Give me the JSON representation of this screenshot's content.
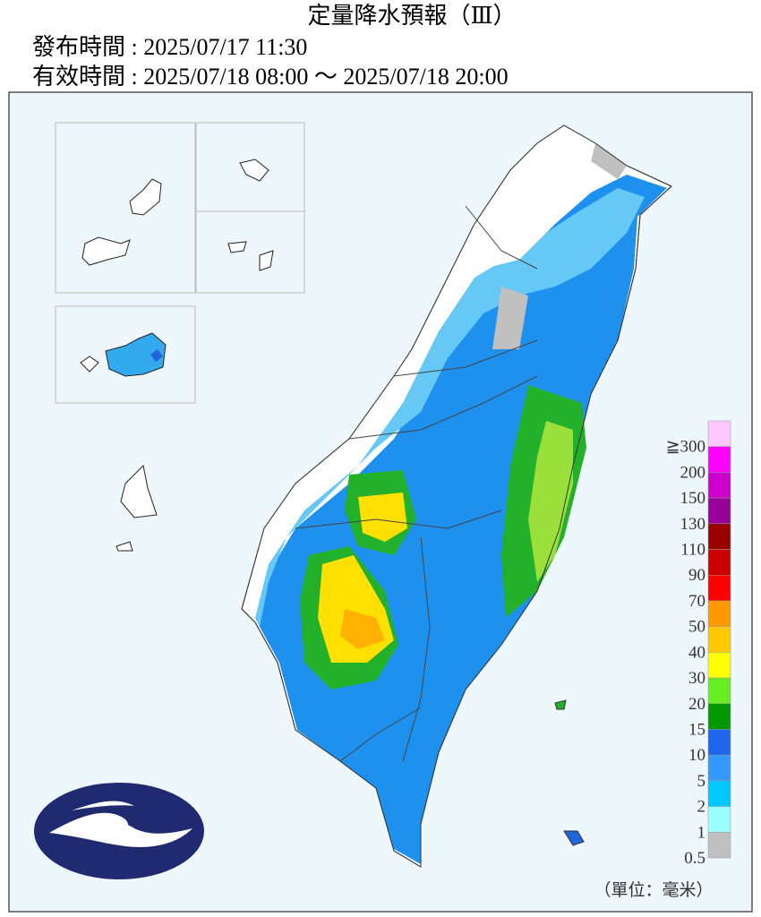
{
  "header": {
    "title": "定量降水預報（Ⅲ）",
    "issued": "發布時間 : 2025/07/17 11:30",
    "valid": "有效時間 : 2025/07/18 08:00 ～ 2025/07/18 20:00"
  },
  "legend": {
    "labels": [
      "≧300",
      "200",
      "150",
      "130",
      "110",
      "90",
      "70",
      "50",
      "40",
      "30",
      "20",
      "15",
      "10",
      "5",
      "2",
      "1",
      "0.5"
    ],
    "colors": [
      "#ffc6ff",
      "#ff00ff",
      "#cc00cc",
      "#990099",
      "#990000",
      "#cc0000",
      "#ff0000",
      "#ff9900",
      "#ffc800",
      "#ffff00",
      "#66ee22",
      "#009900",
      "#1e66ee",
      "#3399ff",
      "#00c8ff",
      "#99ffff",
      "#c0c0c0"
    ],
    "unit": "（單位：毫米）"
  }
}
